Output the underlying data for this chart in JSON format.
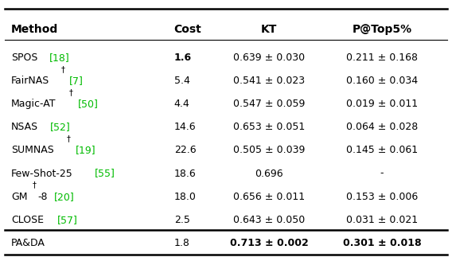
{
  "columns": [
    "Method",
    "Cost",
    "KT",
    "P@Top5%"
  ],
  "rows": [
    {
      "method": "SPOS",
      "sup": "",
      "suffix": "",
      "ref": "[18]",
      "cost": "1.6",
      "cost_bold": true,
      "kt": "0.639 ± 0.030",
      "kt_bold": false,
      "p5": "0.211 ± 0.168",
      "p5_bold": false
    },
    {
      "method": "FairNAS",
      "sup": "†",
      "suffix": "",
      "ref": "[7]",
      "cost": "5.4",
      "cost_bold": false,
      "kt": "0.541 ± 0.023",
      "kt_bold": false,
      "p5": "0.160 ± 0.034",
      "p5_bold": false
    },
    {
      "method": "Magic-AT",
      "sup": "†",
      "suffix": "",
      "ref": "[50]",
      "cost": "4.4",
      "cost_bold": false,
      "kt": "0.547 ± 0.059",
      "kt_bold": false,
      "p5": "0.019 ± 0.011",
      "p5_bold": false
    },
    {
      "method": "NSAS",
      "sup": "",
      "suffix": "",
      "ref": "[52]",
      "cost": "14.6",
      "cost_bold": false,
      "kt": "0.653 ± 0.051",
      "kt_bold": false,
      "p5": "0.064 ± 0.028",
      "p5_bold": false
    },
    {
      "method": "SUMNAS",
      "sup": "†",
      "suffix": "",
      "ref": "[19]",
      "cost": "22.6",
      "cost_bold": false,
      "kt": "0.505 ± 0.039",
      "kt_bold": false,
      "p5": "0.145 ± 0.061",
      "p5_bold": false
    },
    {
      "method": "Few-Shot-25",
      "sup": "",
      "suffix": "",
      "ref": "[55]",
      "cost": "18.6",
      "cost_bold": false,
      "kt": "0.696",
      "kt_bold": false,
      "p5": "-",
      "p5_bold": false
    },
    {
      "method": "GM",
      "sup": "†",
      "suffix": "-8",
      "ref": "[20]",
      "cost": "18.0",
      "cost_bold": false,
      "kt": "0.656 ± 0.011",
      "kt_bold": false,
      "p5": "0.153 ± 0.006",
      "p5_bold": false
    },
    {
      "method": "CLOSE",
      "sup": "",
      "suffix": "",
      "ref": "[57]",
      "cost": "2.5",
      "cost_bold": false,
      "kt": "0.643 ± 0.050",
      "kt_bold": false,
      "p5": "0.031 ± 0.021",
      "p5_bold": false
    }
  ],
  "last_row": {
    "method": "PA&DA",
    "sup": "",
    "suffix": "",
    "ref": "",
    "cost": "1.8",
    "cost_bold": false,
    "kt": "0.713 ± 0.002",
    "kt_bold": true,
    "p5": "0.301 ± 0.018",
    "p5_bold": true
  },
  "ref_color": "#00bb00",
  "bg_color": "#ffffff",
  "text_color": "#000000",
  "fs": 9.0,
  "hfs": 10.0,
  "sup_fs": 7.0,
  "figw": 5.68,
  "figh": 3.23,
  "dpi": 100
}
